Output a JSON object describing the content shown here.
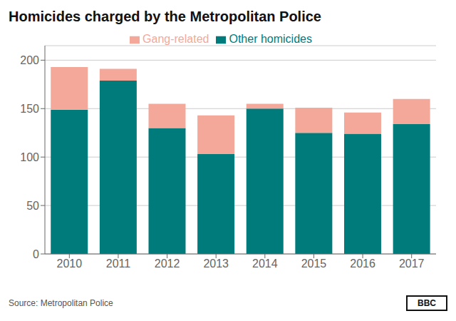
{
  "chart_data": {
    "type": "bar",
    "title": "Homicides charged by the Metropolitan Police",
    "categories": [
      "2010",
      "2011",
      "2012",
      "2013",
      "2014",
      "2015",
      "2016",
      "2017"
    ],
    "series": [
      {
        "name": "Other homicides",
        "color": "#007b7b",
        "values": [
          149,
          179,
          130,
          103,
          150,
          125,
          124,
          134
        ]
      },
      {
        "name": "Gang-related",
        "color": "#f4a89a",
        "values": [
          44,
          12,
          25,
          40,
          5,
          26,
          22,
          26
        ]
      }
    ],
    "stacked": true,
    "ylim": [
      0,
      215
    ],
    "yticks": [
      0,
      50,
      100,
      150,
      200
    ],
    "grid": true,
    "legend": "top",
    "annotations": [
      "Source: Metropolitan Police",
      "BBC"
    ]
  }
}
